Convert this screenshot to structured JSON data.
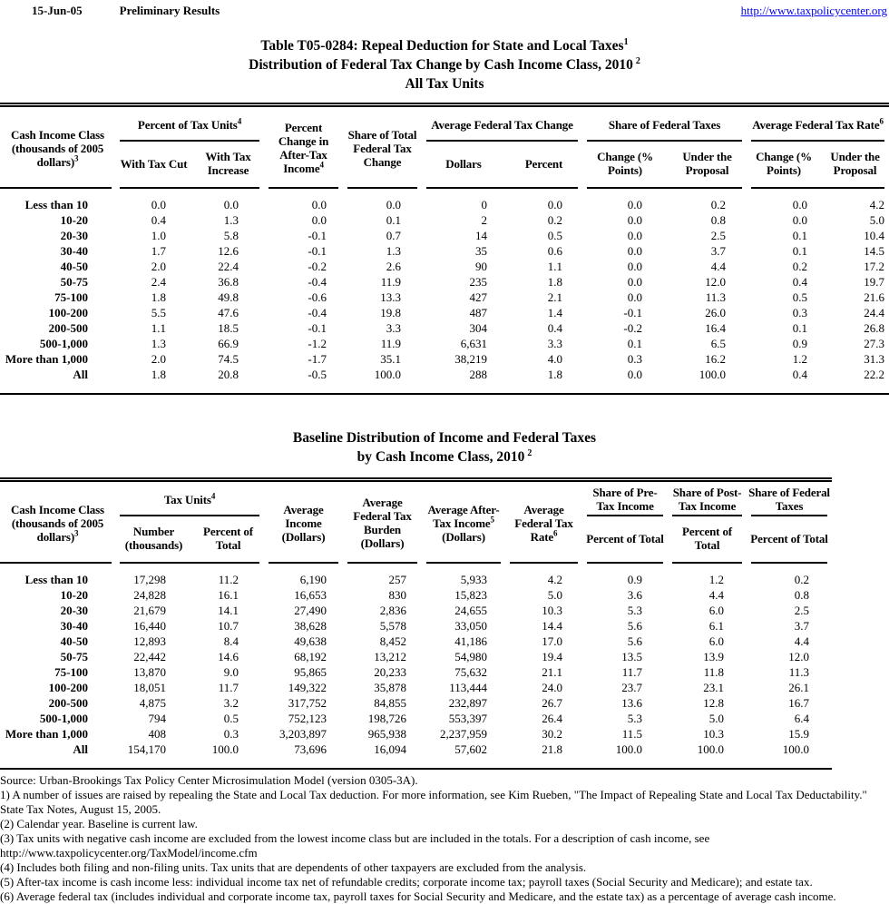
{
  "colors": {
    "link": "#0000EE",
    "text": "#000000",
    "rule": "#000000",
    "background": "#FFFFFF"
  },
  "topbar": {
    "date": "15-Jun-05",
    "status": "Preliminary Results",
    "link": "http://www.taxpolicycenter.org"
  },
  "title": {
    "line1": "Table T05-0284: Repeal Deduction for State and Local Taxes",
    "line1_sup": "1",
    "line2": "Distribution of Federal Tax Change by Cash Income Class, 2010",
    "line2_sup": "2",
    "line3": "All Tax Units"
  },
  "table1": {
    "header": {
      "label": {
        "text": "Cash Income Class (thousands of 2005 dollars)",
        "sup": "3"
      },
      "groups": [
        {
          "text": "Percent of Tax Units",
          "sup": "4",
          "subs": [
            "With Tax Cut",
            "With Tax Increase"
          ]
        },
        {
          "text": "Percent Change in After-Tax Income",
          "sup": "4"
        },
        {
          "text": "Share of Total Federal Tax Change"
        },
        {
          "text": "Average Federal Tax Change",
          "subs": [
            "Dollars",
            "Percent"
          ]
        },
        {
          "text": "Share of Federal Taxes",
          "subs": [
            "Change (% Points)",
            "Under the Proposal"
          ]
        },
        {
          "text": "Average Federal Tax Rate",
          "sup": "6",
          "subs": [
            "Change (% Points)",
            "Under the Proposal"
          ]
        }
      ]
    },
    "rows": [
      [
        "Less than 10",
        "0.0",
        "0.0",
        "0.0",
        "0.0",
        "0",
        "0.0",
        "0.0",
        "0.2",
        "0.0",
        "4.2"
      ],
      [
        "10-20",
        "0.4",
        "1.3",
        "0.0",
        "0.1",
        "2",
        "0.2",
        "0.0",
        "0.8",
        "0.0",
        "5.0"
      ],
      [
        "20-30",
        "1.0",
        "5.8",
        "-0.1",
        "0.7",
        "14",
        "0.5",
        "0.0",
        "2.5",
        "0.1",
        "10.4"
      ],
      [
        "30-40",
        "1.7",
        "12.6",
        "-0.1",
        "1.3",
        "35",
        "0.6",
        "0.0",
        "3.7",
        "0.1",
        "14.5"
      ],
      [
        "40-50",
        "2.0",
        "22.4",
        "-0.2",
        "2.6",
        "90",
        "1.1",
        "0.0",
        "4.4",
        "0.2",
        "17.2"
      ],
      [
        "50-75",
        "2.4",
        "36.8",
        "-0.4",
        "11.9",
        "235",
        "1.8",
        "0.0",
        "12.0",
        "0.4",
        "19.7"
      ],
      [
        "75-100",
        "1.8",
        "49.8",
        "-0.6",
        "13.3",
        "427",
        "2.1",
        "0.0",
        "11.3",
        "0.5",
        "21.6"
      ],
      [
        "100-200",
        "5.5",
        "47.6",
        "-0.4",
        "19.8",
        "487",
        "1.4",
        "-0.1",
        "26.0",
        "0.3",
        "24.4"
      ],
      [
        "200-500",
        "1.1",
        "18.5",
        "-0.1",
        "3.3",
        "304",
        "0.4",
        "-0.2",
        "16.4",
        "0.1",
        "26.8"
      ],
      [
        "500-1,000",
        "1.3",
        "66.9",
        "-1.2",
        "11.9",
        "6,631",
        "3.3",
        "0.1",
        "6.5",
        "0.9",
        "27.3"
      ],
      [
        "More than 1,000",
        "2.0",
        "74.5",
        "-1.7",
        "35.1",
        "38,219",
        "4.0",
        "0.3",
        "16.2",
        "1.2",
        "31.3"
      ],
      [
        "All",
        "1.8",
        "20.8",
        "-0.5",
        "100.0",
        "288",
        "1.8",
        "0.0",
        "100.0",
        "0.4",
        "22.2"
      ]
    ]
  },
  "title2": {
    "line1": "Baseline Distribution of Income and Federal Taxes",
    "line2": "by Cash Income Class, 2010",
    "line2_sup": "2"
  },
  "table2": {
    "header": {
      "label": {
        "text": "Cash Income Class (thousands of 2005 dollars)",
        "sup": "3"
      },
      "groups": [
        {
          "text": "Tax Units",
          "sup": "4",
          "subs": [
            "Number (thousands)",
            "Percent of Total"
          ]
        },
        {
          "text": "Average Income (Dollars)"
        },
        {
          "text": "Average Federal Tax Burden (Dollars)"
        },
        {
          "text": "Average After-Tax Income",
          "sup": "5",
          "tail": " (Dollars)"
        },
        {
          "text": "Average Federal Tax Rate",
          "sup": "6"
        },
        {
          "text": "Share of Pre-Tax Income",
          "subs": [
            "Percent of Total"
          ]
        },
        {
          "text": "Share of Post-Tax Income",
          "subs": [
            "Percent of Total"
          ]
        },
        {
          "text": "Share of Federal Taxes",
          "subs": [
            "Percent of Total"
          ]
        }
      ]
    },
    "rows": [
      [
        "Less than 10",
        "17,298",
        "11.2",
        "6,190",
        "257",
        "5,933",
        "4.2",
        "0.9",
        "1.2",
        "0.2"
      ],
      [
        "10-20",
        "24,828",
        "16.1",
        "16,653",
        "830",
        "15,823",
        "5.0",
        "3.6",
        "4.4",
        "0.8"
      ],
      [
        "20-30",
        "21,679",
        "14.1",
        "27,490",
        "2,836",
        "24,655",
        "10.3",
        "5.3",
        "6.0",
        "2.5"
      ],
      [
        "30-40",
        "16,440",
        "10.7",
        "38,628",
        "5,578",
        "33,050",
        "14.4",
        "5.6",
        "6.1",
        "3.7"
      ],
      [
        "40-50",
        "12,893",
        "8.4",
        "49,638",
        "8,452",
        "41,186",
        "17.0",
        "5.6",
        "6.0",
        "4.4"
      ],
      [
        "50-75",
        "22,442",
        "14.6",
        "68,192",
        "13,212",
        "54,980",
        "19.4",
        "13.5",
        "13.9",
        "12.0"
      ],
      [
        "75-100",
        "13,870",
        "9.0",
        "95,865",
        "20,233",
        "75,632",
        "21.1",
        "11.7",
        "11.8",
        "11.3"
      ],
      [
        "100-200",
        "18,051",
        "11.7",
        "149,322",
        "35,878",
        "113,444",
        "24.0",
        "23.7",
        "23.1",
        "26.1"
      ],
      [
        "200-500",
        "4,875",
        "3.2",
        "317,752",
        "84,855",
        "232,897",
        "26.7",
        "13.6",
        "12.8",
        "16.7"
      ],
      [
        "500-1,000",
        "794",
        "0.5",
        "752,123",
        "198,726",
        "553,397",
        "26.4",
        "5.3",
        "5.0",
        "6.4"
      ],
      [
        "More than 1,000",
        "408",
        "0.3",
        "3,203,897",
        "965,938",
        "2,237,959",
        "30.2",
        "11.5",
        "10.3",
        "15.9"
      ],
      [
        "All",
        "154,170",
        "100.0",
        "73,696",
        "16,094",
        "57,602",
        "21.8",
        "100.0",
        "100.0",
        "100.0"
      ]
    ]
  },
  "footnotes": [
    "Source: Urban-Brookings Tax Policy Center Microsimulation Model (version 0305-3A).",
    "1) A number of issues are raised by repealing the State and Local Tax deduction. For more information, see Kim Rueben, \"The Impact of Repealing State and Local Tax Deductability.\" State Tax Notes, August 15, 2005.",
    "(2) Calendar year. Baseline is current law.",
    "(3) Tax units with negative cash income are excluded from the lowest income class but are included in the totals. For a description of cash income, see http://www.taxpolicycenter.org/TaxModel/income.cfm",
    "(4) Includes both filing and non-filing units.  Tax units that are dependents of other taxpayers are excluded from the analysis.",
    "(5) After-tax income is cash income less: individual income tax net of refundable credits; corporate income tax; payroll taxes (Social Security and Medicare); and estate tax.",
    "(6) Average federal tax (includes individual and corporate income tax, payroll taxes for Social Security and Medicare, and the estate tax) as a percentage of average cash income."
  ]
}
